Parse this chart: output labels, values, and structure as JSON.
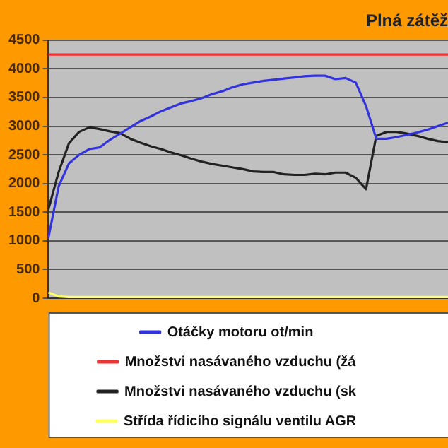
{
  "chart_data": {
    "type": "line",
    "title": "Plná zátěž",
    "categories": [
      null,
      null,
      null,
      null,
      null,
      null,
      null,
      null,
      null,
      null,
      null,
      null,
      null,
      null,
      null,
      null,
      null,
      null,
      null,
      null,
      null,
      null,
      null,
      null,
      null,
      null,
      null,
      null,
      null,
      null,
      null,
      null,
      null,
      null,
      null,
      null,
      null,
      null,
      null,
      null
    ],
    "series": [
      {
        "name": "Otáčky motoru ot/min",
        "color": "#3333dd",
        "values": [
          1050,
          1950,
          2350,
          2500,
          2600,
          2630,
          2760,
          2870,
          2980,
          3090,
          3170,
          3260,
          3330,
          3400,
          3440,
          3490,
          3560,
          3610,
          3680,
          3730,
          3760,
          3790,
          3810,
          3830,
          3850,
          3870,
          3880,
          3880,
          3820,
          3840,
          3760,
          3350,
          2780,
          2780,
          2810,
          2850,
          2890,
          2940,
          3000,
          3060
        ]
      },
      {
        "name": "Množstvi nasávaného vzduchu (žá",
        "color": "#ee3333",
        "values": [
          4250,
          4250,
          4250,
          4250,
          4250,
          4250,
          4250,
          4250,
          4250,
          4250,
          4250,
          4250,
          4250,
          4250,
          4250,
          4250,
          4250,
          4250,
          4250,
          4250,
          4250,
          4250,
          4250,
          4250,
          4250,
          4250,
          4250,
          4250,
          4250,
          4250,
          4250,
          4250,
          4250,
          4250,
          4250,
          4250,
          4250,
          4250,
          4250,
          4250
        ]
      },
      {
        "name": "Množstvi nasávaného vzduchu (sk",
        "color": "#222222",
        "values": [
          1550,
          2200,
          2700,
          2900,
          2980,
          2950,
          2910,
          2880,
          2780,
          2710,
          2650,
          2600,
          2540,
          2490,
          2430,
          2380,
          2340,
          2310,
          2280,
          2250,
          2210,
          2200,
          2200,
          2160,
          2150,
          2150,
          2170,
          2160,
          2190,
          2190,
          2100,
          1900,
          2830,
          2900,
          2900,
          2870,
          2830,
          2780,
          2740,
          2720
        ]
      },
      {
        "name": "Střída řídicího signálu ventilu AGR",
        "color": "#ffff66",
        "values": [
          100,
          30,
          20,
          20,
          20,
          20,
          20,
          20,
          20,
          20,
          20,
          20,
          20,
          20,
          20,
          20,
          20,
          20,
          20,
          20,
          20,
          20,
          20,
          20,
          20,
          20,
          20,
          20,
          20,
          20,
          20,
          20,
          20,
          20,
          20,
          20,
          20,
          20,
          20,
          20
        ]
      }
    ],
    "ylim": [
      0,
      4500
    ],
    "yticks": [
      0,
      500,
      1000,
      1500,
      2000,
      2500,
      3000,
      3500,
      4000,
      4500
    ],
    "grid": "y",
    "legend": "bottom",
    "tick_labels": "y",
    "marker": "none",
    "line_style": "solid"
  }
}
